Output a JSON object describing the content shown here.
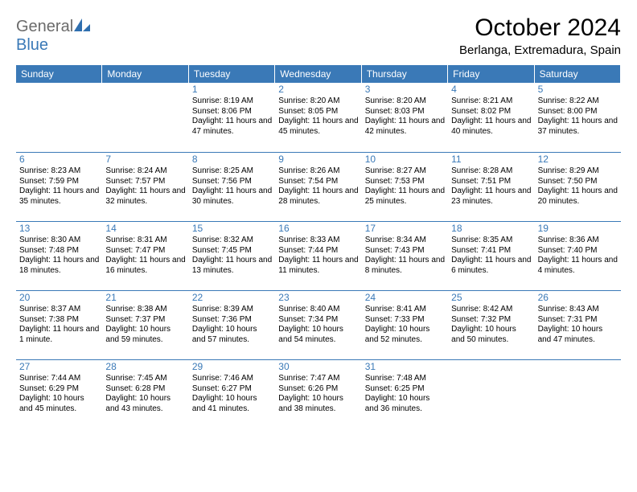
{
  "logo": {
    "general": "General",
    "blue": "Blue"
  },
  "title": "October 2024",
  "subtitle": "Berlanga, Extremadura, Spain",
  "colors": {
    "header_bg": "#3a79b7",
    "header_fg": "#ffffff",
    "daynum": "#3a79b7",
    "rule": "#3a79b7",
    "logo_gray": "#6b6b6b"
  },
  "fonts": {
    "title_size": 30,
    "subtitle_size": 15,
    "dayhead_size": 12,
    "body_size": 10,
    "daynum_size": 12
  },
  "day_headers": [
    "Sunday",
    "Monday",
    "Tuesday",
    "Wednesday",
    "Thursday",
    "Friday",
    "Saturday"
  ],
  "weeks": [
    [
      {
        "blank": true
      },
      {
        "blank": true
      },
      {
        "day": "1",
        "sunrise": "Sunrise: 8:19 AM",
        "sunset": "Sunset: 8:06 PM",
        "daylight": "Daylight: 11 hours and 47 minutes."
      },
      {
        "day": "2",
        "sunrise": "Sunrise: 8:20 AM",
        "sunset": "Sunset: 8:05 PM",
        "daylight": "Daylight: 11 hours and 45 minutes."
      },
      {
        "day": "3",
        "sunrise": "Sunrise: 8:20 AM",
        "sunset": "Sunset: 8:03 PM",
        "daylight": "Daylight: 11 hours and 42 minutes."
      },
      {
        "day": "4",
        "sunrise": "Sunrise: 8:21 AM",
        "sunset": "Sunset: 8:02 PM",
        "daylight": "Daylight: 11 hours and 40 minutes."
      },
      {
        "day": "5",
        "sunrise": "Sunrise: 8:22 AM",
        "sunset": "Sunset: 8:00 PM",
        "daylight": "Daylight: 11 hours and 37 minutes."
      }
    ],
    [
      {
        "day": "6",
        "sunrise": "Sunrise: 8:23 AM",
        "sunset": "Sunset: 7:59 PM",
        "daylight": "Daylight: 11 hours and 35 minutes."
      },
      {
        "day": "7",
        "sunrise": "Sunrise: 8:24 AM",
        "sunset": "Sunset: 7:57 PM",
        "daylight": "Daylight: 11 hours and 32 minutes."
      },
      {
        "day": "8",
        "sunrise": "Sunrise: 8:25 AM",
        "sunset": "Sunset: 7:56 PM",
        "daylight": "Daylight: 11 hours and 30 minutes."
      },
      {
        "day": "9",
        "sunrise": "Sunrise: 8:26 AM",
        "sunset": "Sunset: 7:54 PM",
        "daylight": "Daylight: 11 hours and 28 minutes."
      },
      {
        "day": "10",
        "sunrise": "Sunrise: 8:27 AM",
        "sunset": "Sunset: 7:53 PM",
        "daylight": "Daylight: 11 hours and 25 minutes."
      },
      {
        "day": "11",
        "sunrise": "Sunrise: 8:28 AM",
        "sunset": "Sunset: 7:51 PM",
        "daylight": "Daylight: 11 hours and 23 minutes."
      },
      {
        "day": "12",
        "sunrise": "Sunrise: 8:29 AM",
        "sunset": "Sunset: 7:50 PM",
        "daylight": "Daylight: 11 hours and 20 minutes."
      }
    ],
    [
      {
        "day": "13",
        "sunrise": "Sunrise: 8:30 AM",
        "sunset": "Sunset: 7:48 PM",
        "daylight": "Daylight: 11 hours and 18 minutes."
      },
      {
        "day": "14",
        "sunrise": "Sunrise: 8:31 AM",
        "sunset": "Sunset: 7:47 PM",
        "daylight": "Daylight: 11 hours and 16 minutes."
      },
      {
        "day": "15",
        "sunrise": "Sunrise: 8:32 AM",
        "sunset": "Sunset: 7:45 PM",
        "daylight": "Daylight: 11 hours and 13 minutes."
      },
      {
        "day": "16",
        "sunrise": "Sunrise: 8:33 AM",
        "sunset": "Sunset: 7:44 PM",
        "daylight": "Daylight: 11 hours and 11 minutes."
      },
      {
        "day": "17",
        "sunrise": "Sunrise: 8:34 AM",
        "sunset": "Sunset: 7:43 PM",
        "daylight": "Daylight: 11 hours and 8 minutes."
      },
      {
        "day": "18",
        "sunrise": "Sunrise: 8:35 AM",
        "sunset": "Sunset: 7:41 PM",
        "daylight": "Daylight: 11 hours and 6 minutes."
      },
      {
        "day": "19",
        "sunrise": "Sunrise: 8:36 AM",
        "sunset": "Sunset: 7:40 PM",
        "daylight": "Daylight: 11 hours and 4 minutes."
      }
    ],
    [
      {
        "day": "20",
        "sunrise": "Sunrise: 8:37 AM",
        "sunset": "Sunset: 7:38 PM",
        "daylight": "Daylight: 11 hours and 1 minute."
      },
      {
        "day": "21",
        "sunrise": "Sunrise: 8:38 AM",
        "sunset": "Sunset: 7:37 PM",
        "daylight": "Daylight: 10 hours and 59 minutes."
      },
      {
        "day": "22",
        "sunrise": "Sunrise: 8:39 AM",
        "sunset": "Sunset: 7:36 PM",
        "daylight": "Daylight: 10 hours and 57 minutes."
      },
      {
        "day": "23",
        "sunrise": "Sunrise: 8:40 AM",
        "sunset": "Sunset: 7:34 PM",
        "daylight": "Daylight: 10 hours and 54 minutes."
      },
      {
        "day": "24",
        "sunrise": "Sunrise: 8:41 AM",
        "sunset": "Sunset: 7:33 PM",
        "daylight": "Daylight: 10 hours and 52 minutes."
      },
      {
        "day": "25",
        "sunrise": "Sunrise: 8:42 AM",
        "sunset": "Sunset: 7:32 PM",
        "daylight": "Daylight: 10 hours and 50 minutes."
      },
      {
        "day": "26",
        "sunrise": "Sunrise: 8:43 AM",
        "sunset": "Sunset: 7:31 PM",
        "daylight": "Daylight: 10 hours and 47 minutes."
      }
    ],
    [
      {
        "day": "27",
        "sunrise": "Sunrise: 7:44 AM",
        "sunset": "Sunset: 6:29 PM",
        "daylight": "Daylight: 10 hours and 45 minutes."
      },
      {
        "day": "28",
        "sunrise": "Sunrise: 7:45 AM",
        "sunset": "Sunset: 6:28 PM",
        "daylight": "Daylight: 10 hours and 43 minutes."
      },
      {
        "day": "29",
        "sunrise": "Sunrise: 7:46 AM",
        "sunset": "Sunset: 6:27 PM",
        "daylight": "Daylight: 10 hours and 41 minutes."
      },
      {
        "day": "30",
        "sunrise": "Sunrise: 7:47 AM",
        "sunset": "Sunset: 6:26 PM",
        "daylight": "Daylight: 10 hours and 38 minutes."
      },
      {
        "day": "31",
        "sunrise": "Sunrise: 7:48 AM",
        "sunset": "Sunset: 6:25 PM",
        "daylight": "Daylight: 10 hours and 36 minutes."
      },
      {
        "blank": true
      },
      {
        "blank": true
      }
    ]
  ]
}
